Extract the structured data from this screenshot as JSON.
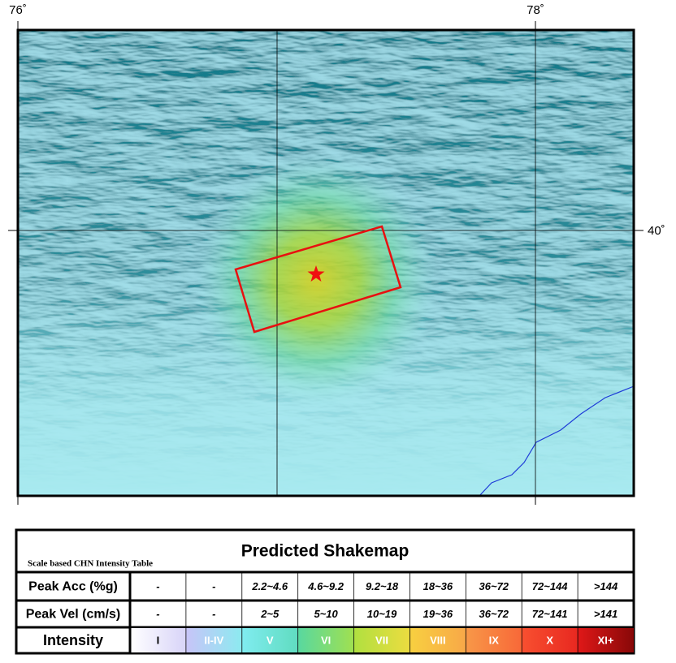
{
  "map": {
    "lon_labels": [
      "76˚",
      "78˚"
    ],
    "lat_labels": [
      "40˚"
    ]
  },
  "legend": {
    "title": "Predicted Shakemap",
    "subtitle": "Scale based CHN Intensity Table",
    "rows": [
      {
        "label": "Peak Acc (%g)",
        "cells": [
          "-",
          "-",
          "2.2~4.6",
          "4.6~9.2",
          "9.2~18",
          "18~36",
          "36~72",
          "72~144",
          ">144"
        ]
      },
      {
        "label": "Peak Vel (cm/s)",
        "cells": [
          "-",
          "-",
          "2~5",
          "5~10",
          "10~19",
          "19~36",
          "36~72",
          "72~141",
          ">141"
        ]
      },
      {
        "label": "Intensity",
        "cells": [
          "I",
          "II-IV",
          "V",
          "VI",
          "VII",
          "VIII",
          "IX",
          "X",
          "XI+"
        ]
      }
    ]
  }
}
